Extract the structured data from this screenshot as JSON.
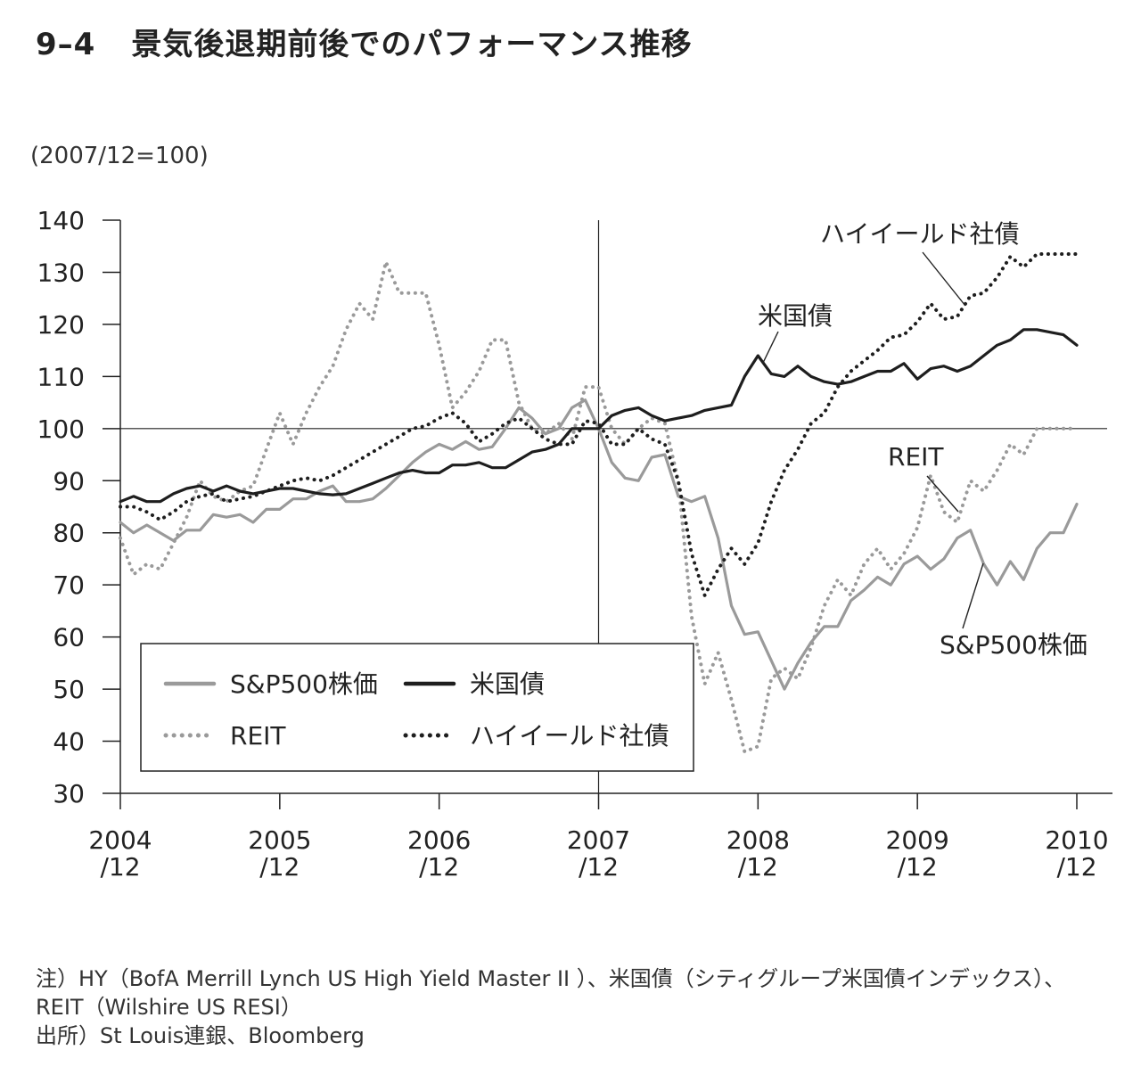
{
  "figure": {
    "number": "9–4",
    "title": "景気後退期前後でのパフォーマンス推移"
  },
  "notes": [
    "注）HY（BofA Merrill Lynch US High Yield Master II ）、米国債（シティグループ米国債インデックス）、",
    "REIT（Wilshire US RESI）",
    "出所）St Louis連銀、Bloomberg"
  ],
  "colors": {
    "sp500": "#9a9a9a",
    "treasury": "#1e1e1e",
    "reit": "#9a9a9a",
    "high_yield": "#1e1e1e",
    "axis": "#222222"
  },
  "chart_data": {
    "type": "line",
    "title": "景気後退期前後でのパフォーマンス推移",
    "unit_label": "(2007/12=100)",
    "xlabel": "",
    "ylabel": "",
    "ylim": [
      30,
      140
    ],
    "yticks": [
      30,
      40,
      50,
      60,
      70,
      80,
      90,
      100,
      110,
      120,
      130,
      140
    ],
    "xlim": [
      2004.917,
      2010.95
    ],
    "x_ticks": [
      {
        "x": 2004.917,
        "line1": "2004",
        "line2": "/12"
      },
      {
        "x": 2005.917,
        "line1": "2005",
        "line2": "/12"
      },
      {
        "x": 2006.917,
        "line1": "2006",
        "line2": "/12"
      },
      {
        "x": 2007.917,
        "line1": "2007",
        "line2": "/12"
      },
      {
        "x": 2008.917,
        "line1": "2008",
        "line2": "/12"
      },
      {
        "x": 2009.917,
        "line1": "2009",
        "line2": "/12"
      },
      {
        "x": 2010.917,
        "line1": "2010",
        "line2": "/12"
      }
    ],
    "reference_lines": {
      "y": 100,
      "x": 2007.917
    },
    "legend_position": "bottom-left",
    "series": [
      {
        "name": "S&P500株価",
        "key": "sp500",
        "style": "solid",
        "x": [
          2004.917,
          2005.0,
          2005.083,
          2005.167,
          2005.25,
          2005.333,
          2005.417,
          2005.5,
          2005.583,
          2005.667,
          2005.75,
          2005.833,
          2005.917,
          2006.0,
          2006.083,
          2006.167,
          2006.25,
          2006.333,
          2006.417,
          2006.5,
          2006.583,
          2006.667,
          2006.75,
          2006.833,
          2006.917,
          2007.0,
          2007.083,
          2007.167,
          2007.25,
          2007.333,
          2007.417,
          2007.5,
          2007.583,
          2007.667,
          2007.75,
          2007.833,
          2007.917,
          2008.0,
          2008.083,
          2008.167,
          2008.25,
          2008.333,
          2008.417,
          2008.5,
          2008.583,
          2008.667,
          2008.75,
          2008.833,
          2008.917,
          2009.0,
          2009.083,
          2009.167,
          2009.25,
          2009.333,
          2009.417,
          2009.5,
          2009.583,
          2009.667,
          2009.75,
          2009.833,
          2009.917,
          2010.0,
          2010.083,
          2010.167,
          2010.25,
          2010.333,
          2010.417,
          2010.5,
          2010.583,
          2010.667,
          2010.75,
          2010.833,
          2010.917
        ],
        "y": [
          82,
          80,
          81.5,
          80,
          78.5,
          80.5,
          80.5,
          83.5,
          83,
          83.5,
          82,
          84.5,
          84.5,
          86.5,
          86.5,
          88,
          89,
          86,
          86,
          86.5,
          88.5,
          91,
          93.5,
          95.5,
          97,
          96,
          97.5,
          96,
          96.5,
          100,
          104,
          102,
          99,
          100,
          104,
          105.5,
          100,
          93.5,
          90.5,
          90,
          94.5,
          95,
          87,
          86,
          87,
          79,
          66,
          60.5,
          61,
          55.5,
          50,
          55,
          59,
          62,
          62,
          67,
          69,
          71.5,
          70,
          74,
          75.5,
          73,
          75,
          79,
          80.5,
          74,
          70,
          74.5,
          71,
          77,
          80,
          80,
          85.5
        ]
      },
      {
        "name": "米国債",
        "key": "treasury",
        "style": "solid",
        "x": [
          2004.917,
          2005.0,
          2005.083,
          2005.167,
          2005.25,
          2005.333,
          2005.417,
          2005.5,
          2005.583,
          2005.667,
          2005.75,
          2005.833,
          2005.917,
          2006.0,
          2006.083,
          2006.167,
          2006.25,
          2006.333,
          2006.417,
          2006.5,
          2006.583,
          2006.667,
          2006.75,
          2006.833,
          2006.917,
          2007.0,
          2007.083,
          2007.167,
          2007.25,
          2007.333,
          2007.417,
          2007.5,
          2007.583,
          2007.667,
          2007.75,
          2007.833,
          2007.917,
          2008.0,
          2008.083,
          2008.167,
          2008.25,
          2008.333,
          2008.417,
          2008.5,
          2008.583,
          2008.667,
          2008.75,
          2008.833,
          2008.917,
          2009.0,
          2009.083,
          2009.167,
          2009.25,
          2009.333,
          2009.417,
          2009.5,
          2009.583,
          2009.667,
          2009.75,
          2009.833,
          2009.917,
          2010.0,
          2010.083,
          2010.167,
          2010.25,
          2010.333,
          2010.417,
          2010.5,
          2010.583,
          2010.667,
          2010.75,
          2010.833,
          2010.917
        ],
        "y": [
          86,
          87,
          86,
          86,
          87.5,
          88.5,
          89,
          88,
          89,
          88,
          87.5,
          88,
          88.5,
          88.5,
          88,
          87.5,
          87.3,
          87.5,
          88.5,
          89.5,
          90.5,
          91.5,
          92,
          91.5,
          91.5,
          93,
          93,
          93.5,
          92.5,
          92.5,
          94,
          95.5,
          96,
          97,
          100,
          100,
          100,
          102.5,
          103.5,
          104,
          102.5,
          101.5,
          102,
          102.5,
          103.5,
          104,
          104.5,
          110,
          114,
          110.5,
          110,
          112,
          110,
          109,
          108.5,
          109,
          110,
          111,
          111,
          112.5,
          109.5,
          111.5,
          112,
          111,
          112,
          114,
          116,
          117,
          119,
          119,
          118.5,
          118,
          116
        ]
      },
      {
        "name": "REIT",
        "key": "reit",
        "style": "dotted",
        "x": [
          2004.917,
          2005.0,
          2005.083,
          2005.167,
          2005.25,
          2005.333,
          2005.417,
          2005.5,
          2005.583,
          2005.667,
          2005.75,
          2005.833,
          2005.917,
          2006.0,
          2006.083,
          2006.167,
          2006.25,
          2006.333,
          2006.417,
          2006.5,
          2006.583,
          2006.667,
          2006.75,
          2006.833,
          2006.917,
          2007.0,
          2007.083,
          2007.167,
          2007.25,
          2007.333,
          2007.417,
          2007.5,
          2007.583,
          2007.667,
          2007.75,
          2007.833,
          2007.917,
          2008.0,
          2008.083,
          2008.167,
          2008.25,
          2008.333,
          2008.417,
          2008.5,
          2008.583,
          2008.667,
          2008.75,
          2008.833,
          2008.917,
          2009.0,
          2009.083,
          2009.167,
          2009.25,
          2009.333,
          2009.417,
          2009.5,
          2009.583,
          2009.667,
          2009.75,
          2009.833,
          2009.917,
          2010.0,
          2010.083,
          2010.167,
          2010.25,
          2010.333,
          2010.417,
          2010.5,
          2010.583,
          2010.667,
          2010.75,
          2010.833,
          2010.917
        ],
        "y": [
          79,
          72,
          74,
          73,
          78,
          83,
          90,
          87,
          86,
          88,
          89,
          96,
          103,
          97,
          103,
          108,
          112,
          119,
          124,
          121,
          132,
          126,
          126,
          126,
          116,
          104,
          107,
          111,
          117,
          117,
          105,
          100,
          99,
          101,
          98,
          108,
          108,
          100,
          97,
          100,
          102,
          101,
          90,
          64,
          51,
          57,
          48,
          38,
          39,
          52,
          54,
          52,
          58,
          66,
          71,
          68,
          74,
          77,
          73,
          76,
          81,
          91,
          84,
          82,
          90,
          88,
          92,
          97,
          95,
          100,
          100,
          100,
          100
        ]
      },
      {
        "name": "ハイイールド社債",
        "key": "high_yield",
        "style": "dotted",
        "x": [
          2004.917,
          2005.0,
          2005.083,
          2005.167,
          2005.25,
          2005.333,
          2005.417,
          2005.5,
          2005.583,
          2005.667,
          2005.75,
          2005.833,
          2005.917,
          2006.0,
          2006.083,
          2006.167,
          2006.25,
          2006.333,
          2006.417,
          2006.5,
          2006.583,
          2006.667,
          2006.75,
          2006.833,
          2006.917,
          2007.0,
          2007.083,
          2007.167,
          2007.25,
          2007.333,
          2007.417,
          2007.5,
          2007.583,
          2007.667,
          2007.75,
          2007.833,
          2007.917,
          2008.0,
          2008.083,
          2008.167,
          2008.25,
          2008.333,
          2008.417,
          2008.5,
          2008.583,
          2008.667,
          2008.75,
          2008.833,
          2008.917,
          2009.0,
          2009.083,
          2009.167,
          2009.25,
          2009.333,
          2009.417,
          2009.5,
          2009.583,
          2009.667,
          2009.75,
          2009.833,
          2009.917,
          2010.0,
          2010.083,
          2010.167,
          2010.25,
          2010.333,
          2010.417,
          2010.5,
          2010.583,
          2010.667,
          2010.75,
          2010.833,
          2010.917
        ],
        "y": [
          85,
          85,
          84,
          82.5,
          84,
          86,
          87,
          87.5,
          86,
          86.5,
          87,
          88,
          89,
          90,
          90.5,
          90,
          91,
          92.5,
          94,
          95.5,
          97,
          98.5,
          100,
          100.5,
          102,
          103,
          101,
          97.5,
          99,
          101,
          102,
          100,
          98,
          97,
          97,
          101.5,
          101,
          97,
          97,
          100,
          98,
          97,
          90,
          76,
          68,
          73,
          77,
          74,
          78,
          86,
          92,
          96,
          101,
          103,
          108,
          111,
          113,
          115,
          117.5,
          118,
          120.5,
          124,
          121,
          121.5,
          125.5,
          126,
          129,
          133,
          131,
          133.5,
          133.5,
          133.5,
          133.5
        ]
      }
    ],
    "annotations": [
      {
        "text": "ハイイールド社債",
        "series": "high_yield"
      },
      {
        "text": "米国債",
        "series": "treasury"
      },
      {
        "text": "REIT",
        "series": "reit"
      },
      {
        "text": "S&P500株価",
        "series": "sp500"
      }
    ]
  }
}
